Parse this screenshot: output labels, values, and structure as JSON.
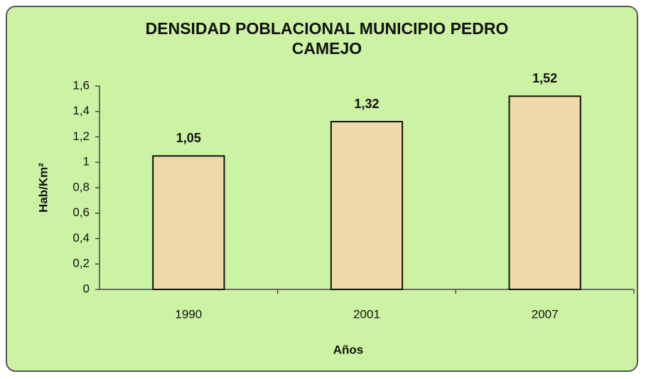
{
  "chart_data": {
    "type": "bar",
    "title": "DENSIDAD POBLACIONAL MUNICIPIO PEDRO CAMEJO",
    "x_label": "Años",
    "y_label": "Hab/Km²",
    "categories": [
      "1990",
      "2001",
      "2007"
    ],
    "values": [
      1.05,
      1.32,
      1.52
    ],
    "value_labels": [
      "1,05",
      "1,32",
      "1,52"
    ],
    "color": "#f0d9a8",
    "ylim": [
      0,
      1.6
    ],
    "yticks": [
      0,
      {
        "value": 0.2,
        "label": "0,2"
      },
      {
        "value": 0.4,
        "label": "0,4"
      },
      {
        "value": 0.6,
        "label": "0,6"
      },
      {
        "value": 0.8,
        "label": "0,8"
      },
      1,
      {
        "value": 1.2,
        "label": "1,2"
      },
      {
        "value": 1.4,
        "label": "1,4"
      },
      {
        "value": 1.6,
        "label": "1,6"
      }
    ],
    "grid": false
  }
}
